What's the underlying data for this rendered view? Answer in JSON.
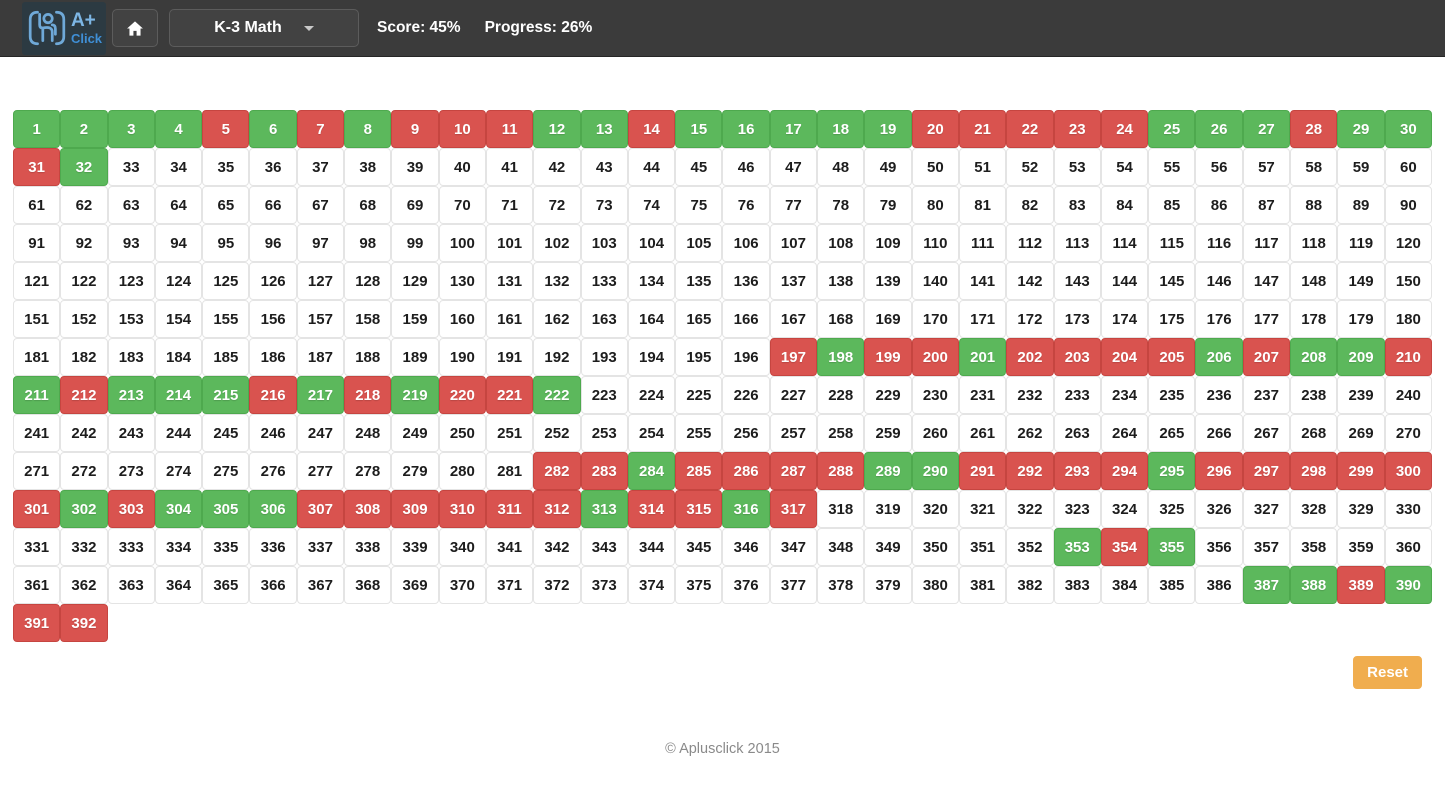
{
  "header": {
    "logo_line1": "A+",
    "logo_line2": "Click",
    "category_label": "K-3 Math",
    "score_text": "Score: 45%",
    "progress_text": "Progress: 26%"
  },
  "colors": {
    "correct_green": "#5cb85c",
    "incorrect_red": "#d9534f",
    "reset_orange": "#f0ad4e"
  },
  "grid": {
    "columns": 30,
    "total": 392,
    "start_number": 1,
    "state_legend": {
      "g": "green",
      "r": "red",
      "w": "white"
    },
    "rows": [
      "ggggrgrgrrrggrgggggrrrrrgggrgg",
      "rgwwwwwwwwwwwwwwwwwwwwwwwwwwww",
      "wwwwwwwwwwwwwwwwwwwwwwwwwwwwww",
      "wwwwwwwwwwwwwwwwwwwwwwwwwwwwww",
      "wwwwwwwwwwwwwwwwwwwwwwwwwwwwww",
      "wwwwwwwwwwwwwwwwwwwwwwwwwwwwww",
      "wwwwwwwwwwwwwwwwrgrrgrrrrgrggr",
      "grgggrgrgrrgwwwwwwwwwwwwwwwwww",
      "wwwwwwwwwwwwwwwwwwwwwwwwwwwwww",
      "wwwwwwwwwwwrrgrrrrggrrrrgrrrrr",
      "rgrgggrrrrrrgrrgrwwwwwwwwwwwww",
      "wwwwwwwwwwwwwwwwwwwwwwgrgwwwww",
      "wwwwwwwwwwwwwwwwwwwwwwwwwwggrg",
      "rr"
    ]
  },
  "reset_button_label": "Reset",
  "footer": {
    "copyright": "© Aplusclick 2015"
  }
}
